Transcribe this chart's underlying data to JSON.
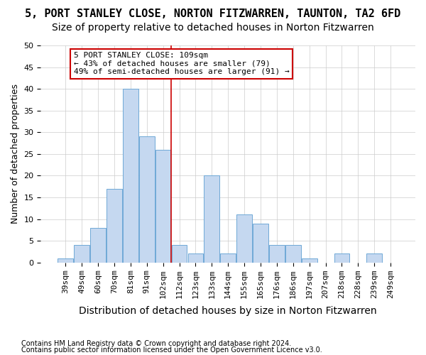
{
  "title": "5, PORT STANLEY CLOSE, NORTON FITZWARREN, TAUNTON, TA2 6FD",
  "subtitle": "Size of property relative to detached houses in Norton Fitzwarren",
  "xlabel": "Distribution of detached houses by size in Norton Fitzwarren",
  "ylabel": "Number of detached properties",
  "footnote1": "Contains HM Land Registry data © Crown copyright and database right 2024.",
  "footnote2": "Contains public sector information licensed under the Open Government Licence v3.0.",
  "bins": [
    "39sqm",
    "49sqm",
    "60sqm",
    "70sqm",
    "81sqm",
    "91sqm",
    "102sqm",
    "112sqm",
    "123sqm",
    "133sqm",
    "144sqm",
    "155sqm",
    "165sqm",
    "176sqm",
    "186sqm",
    "197sqm",
    "207sqm",
    "218sqm",
    "228sqm",
    "239sqm",
    "249sqm"
  ],
  "values": [
    1,
    4,
    8,
    17,
    40,
    29,
    26,
    4,
    2,
    20,
    2,
    11,
    9,
    4,
    4,
    1,
    0,
    2,
    0,
    2,
    0
  ],
  "bar_color": "#c5d8f0",
  "bar_edge_color": "#6fa8d6",
  "vline_x": 6.5,
  "vline_color": "#cc0000",
  "annotation_text": "5 PORT STANLEY CLOSE: 109sqm\n← 43% of detached houses are smaller (79)\n49% of semi-detached houses are larger (91) →",
  "annotation_box_color": "#ffffff",
  "annotation_box_edge": "#cc0000",
  "ylim": [
    0,
    50
  ],
  "yticks": [
    0,
    5,
    10,
    15,
    20,
    25,
    30,
    35,
    40,
    45,
    50
  ],
  "bg_color": "#ffffff",
  "grid_color": "#cccccc",
  "title_fontsize": 11,
  "subtitle_fontsize": 10,
  "xlabel_fontsize": 10,
  "ylabel_fontsize": 9,
  "tick_fontsize": 8,
  "annot_fontsize": 8,
  "footnote_fontsize": 7
}
